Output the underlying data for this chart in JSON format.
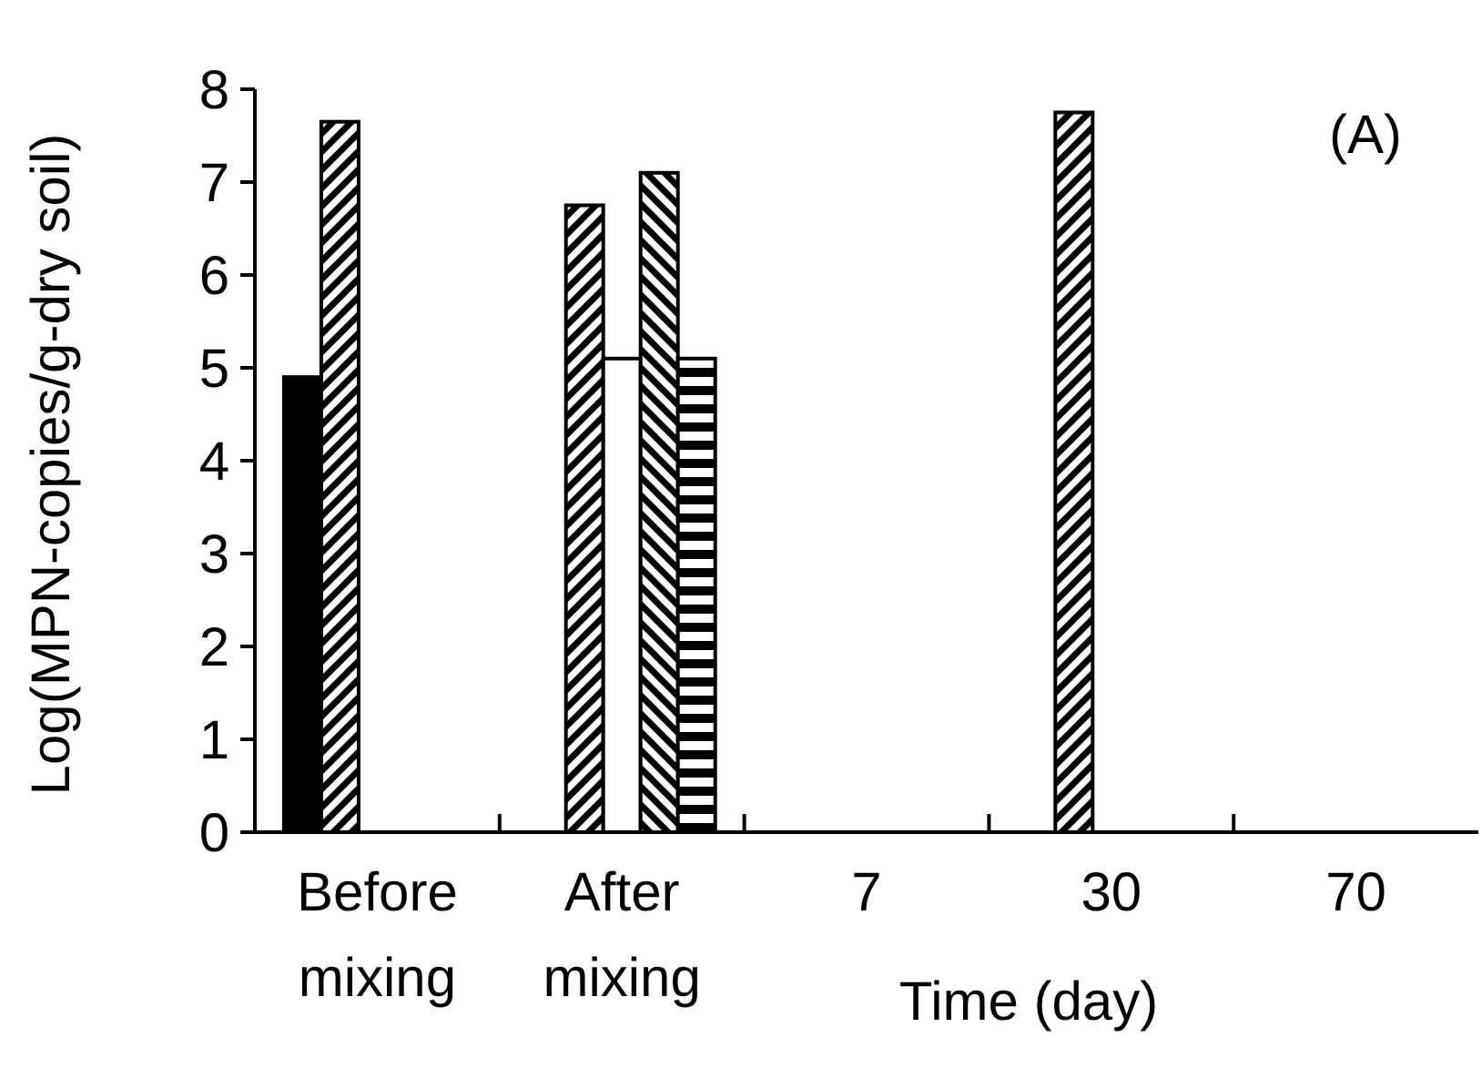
{
  "chart_data": {
    "type": "bar",
    "ylabel": "Log(MPN-copies/g-dry soil)",
    "xlabel": "Time (day)",
    "annotations": [
      "(A)"
    ],
    "categories": [
      "Before mixing",
      "After mixing",
      "7",
      "30",
      "70"
    ],
    "ylim": [
      0,
      8
    ],
    "yticks": [
      0,
      1,
      2,
      3,
      4,
      5,
      6,
      7,
      8
    ],
    "grid": false,
    "series": [
      {
        "color": "#000000",
        "values": [
          4.9,
          null,
          null,
          null,
          null
        ]
      },
      {
        "color": "#000000",
        "values": [
          7.65,
          6.75,
          null,
          7.75,
          null
        ]
      },
      {
        "color": "#ffffff",
        "values": [
          null,
          5.1,
          null,
          null,
          null
        ]
      },
      {
        "color": "#000000",
        "values": [
          null,
          7.1,
          null,
          null,
          null
        ]
      },
      {
        "color": "#000000",
        "values": [
          null,
          5.1,
          null,
          null,
          null
        ]
      }
    ]
  }
}
